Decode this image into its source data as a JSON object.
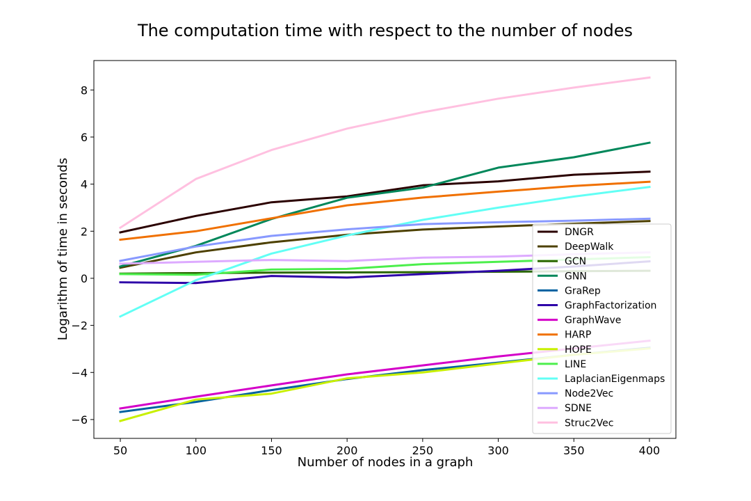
{
  "chart_data": {
    "type": "line",
    "title": "The computation time with respect to the number of nodes",
    "xlabel": "Number of nodes in a graph",
    "ylabel": "Logarithm of time in seconds",
    "x": [
      50,
      100,
      150,
      200,
      250,
      300,
      350,
      400
    ],
    "xlim": [
      32.5,
      417.5
    ],
    "ylim": [
      -6.8,
      9.25
    ],
    "xticks": [
      50,
      100,
      150,
      200,
      250,
      300,
      350,
      400
    ],
    "yticks": [
      -6,
      -4,
      -2,
      0,
      2,
      4,
      6,
      8
    ],
    "ytick_labels": [
      "−6",
      "−4",
      "−2",
      "0",
      "2",
      "4",
      "6",
      "8"
    ],
    "grid": false,
    "legend_position": "right",
    "series": [
      {
        "name": "DNGR",
        "color": "#2a0000",
        "values": [
          1.95,
          2.65,
          3.23,
          3.48,
          3.95,
          4.12,
          4.4,
          4.53
        ]
      },
      {
        "name": "DeepWalk",
        "color": "#4d4000",
        "values": [
          0.45,
          1.1,
          1.53,
          1.85,
          2.07,
          2.2,
          2.32,
          2.43
        ]
      },
      {
        "name": "GCN",
        "color": "#2a6600",
        "values": [
          0.2,
          0.22,
          0.24,
          0.25,
          0.26,
          0.28,
          0.3,
          0.32
        ]
      },
      {
        "name": "GNN",
        "color": "#00875a",
        "values": [
          0.5,
          1.38,
          2.52,
          3.42,
          3.85,
          4.7,
          5.14,
          5.76
        ]
      },
      {
        "name": "GraRep",
        "color": "#0061a0",
        "values": [
          -5.68,
          -5.25,
          -4.75,
          -4.28,
          -3.9,
          -3.58,
          -3.25,
          -2.95
        ]
      },
      {
        "name": "GraphFactorization",
        "color": "#2d00a8",
        "values": [
          -0.17,
          -0.2,
          0.1,
          0.03,
          0.18,
          0.32,
          0.5,
          0.72
        ]
      },
      {
        "name": "GraphWave",
        "color": "#d400c8",
        "values": [
          -5.53,
          -5.03,
          -4.55,
          -4.08,
          -3.7,
          -3.32,
          -2.98,
          -2.65
        ]
      },
      {
        "name": "HARP",
        "color": "#f07000",
        "values": [
          1.64,
          2.0,
          2.55,
          3.1,
          3.43,
          3.68,
          3.92,
          4.1
        ]
      },
      {
        "name": "HOPE",
        "color": "#c8f000",
        "values": [
          -6.06,
          -5.15,
          -4.9,
          -4.25,
          -4.0,
          -3.62,
          -3.25,
          -2.98
        ]
      },
      {
        "name": "LINE",
        "color": "#4cef4c",
        "values": [
          0.18,
          0.15,
          0.37,
          0.4,
          0.6,
          0.7,
          0.8,
          0.9
        ]
      },
      {
        "name": "LaplacianEigenmaps",
        "color": "#62fff5",
        "values": [
          -1.62,
          -0.08,
          1.05,
          1.82,
          2.48,
          3.0,
          3.47,
          3.88
        ]
      },
      {
        "name": "Node2Vec",
        "color": "#8899ff",
        "values": [
          0.74,
          1.35,
          1.8,
          2.08,
          2.3,
          2.38,
          2.45,
          2.53
        ]
      },
      {
        "name": "SDNE",
        "color": "#ddaaff",
        "values": [
          0.62,
          0.7,
          0.78,
          0.73,
          0.88,
          0.92,
          1.02,
          1.1
        ]
      },
      {
        "name": "Struc2Vec",
        "color": "#ffc0e0",
        "values": [
          2.15,
          4.22,
          5.45,
          6.36,
          7.05,
          7.63,
          8.1,
          8.53
        ]
      }
    ]
  }
}
